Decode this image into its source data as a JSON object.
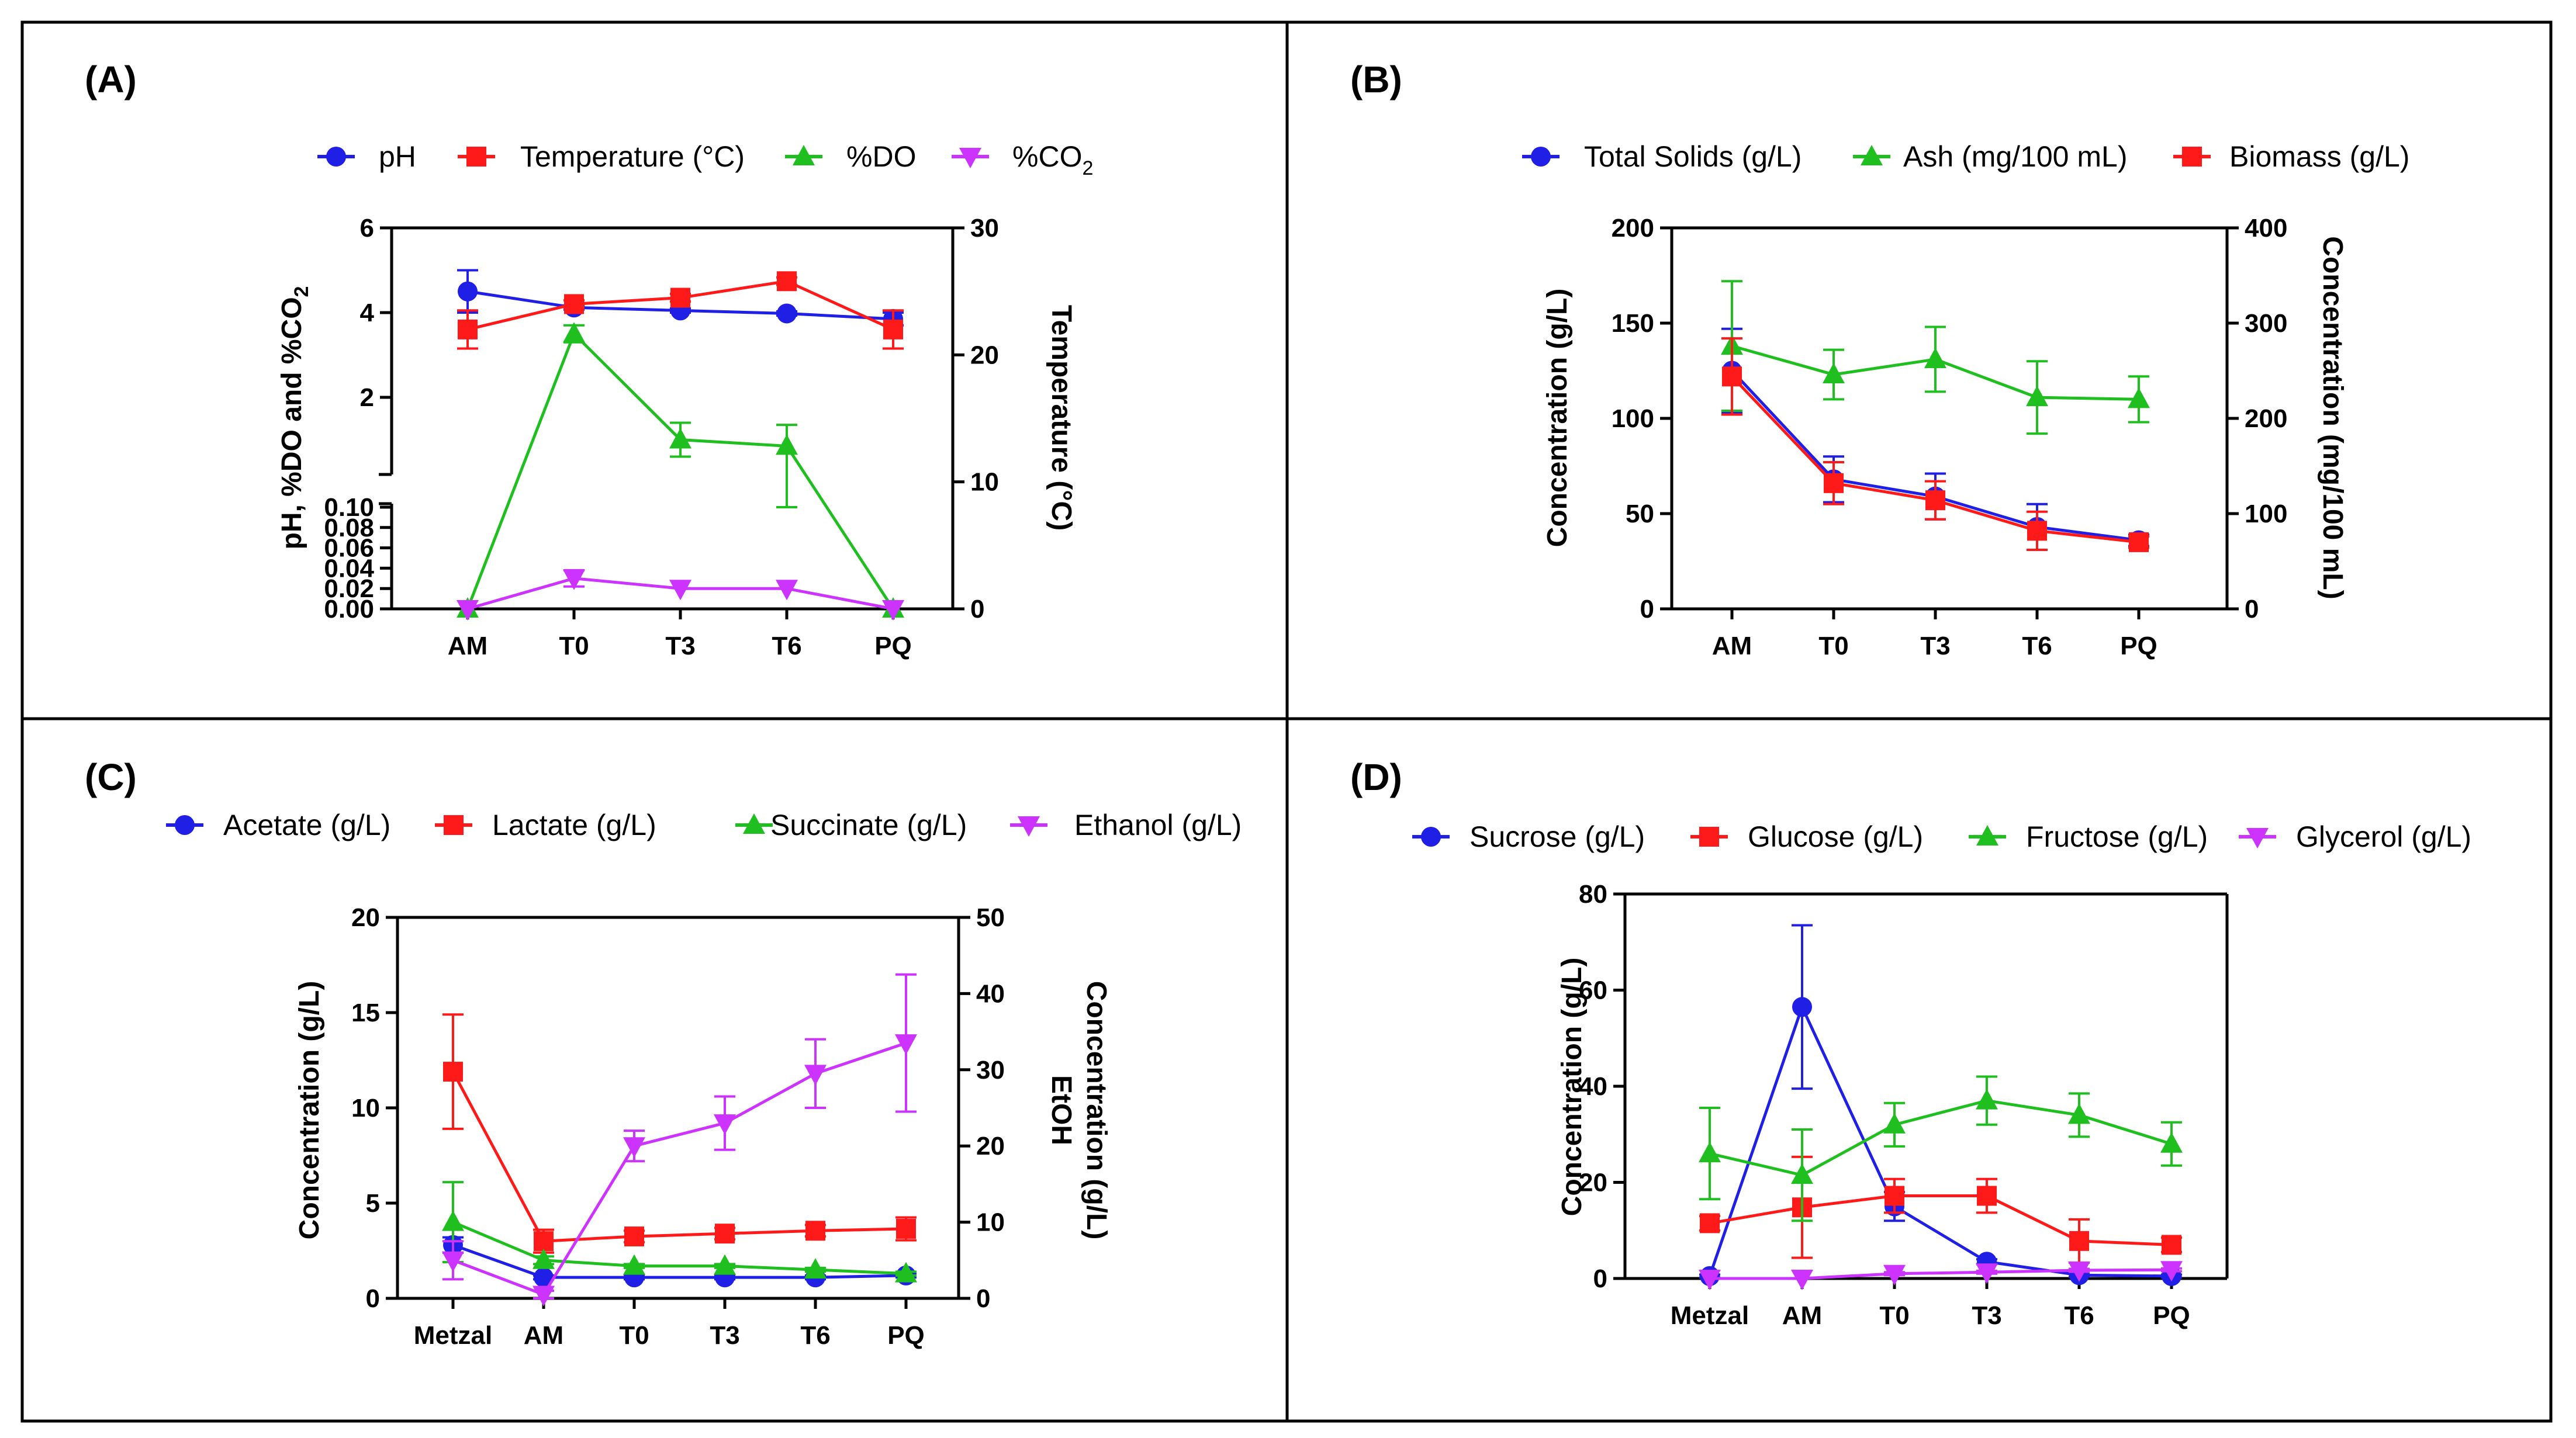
{
  "figure": {
    "panels": [
      "A",
      "B",
      "C",
      "D"
    ]
  },
  "chart_data": [
    {
      "panel": "(A)",
      "type": "line",
      "categories": [
        "AM",
        "T0",
        "T3",
        "T6",
        "PQ"
      ],
      "ylabel_left": "pH, %DO and %CO",
      "ylabel_left_sub": "2",
      "ylabel_right": "Temperature (°C)",
      "left_axis_break": true,
      "left_upper_ylim": [
        0,
        6
      ],
      "left_upper_ticks": [
        "2",
        "4",
        "6"
      ],
      "left_lower_ylim": [
        0,
        0.1
      ],
      "left_lower_ticks": [
        "0.00",
        "0.02",
        "0.04",
        "0.06",
        "0.08",
        "0.10"
      ],
      "right_ylim": [
        0,
        30
      ],
      "right_ticks": [
        "0",
        "10",
        "20",
        "30"
      ],
      "series": [
        {
          "name": "pH",
          "axis": "left",
          "color": "#1f1fe6",
          "marker": "circle",
          "values": [
            4.5,
            4.12,
            4.05,
            3.98,
            3.85
          ],
          "errors": [
            0.5,
            0.05,
            0.05,
            0.05,
            0.15
          ]
        },
        {
          "name": "Temperature (°C)",
          "axis": "right",
          "color": "#ff1a1a",
          "marker": "square",
          "values": [
            22,
            24,
            24.5,
            25.8,
            22
          ],
          "errors": [
            1.5,
            0.3,
            0.3,
            0.3,
            1.5
          ]
        },
        {
          "name": "%DO",
          "axis": "left",
          "color": "#1fbf1f",
          "marker": "triangle-up",
          "values": [
            0,
            3.5,
            1.0,
            0.85,
            0
          ],
          "errors": [
            0,
            0.2,
            0.4,
            0.5,
            0
          ]
        },
        {
          "name": "%CO",
          "name_sub": "2",
          "axis": "left",
          "color": "#cc33ff",
          "marker": "triangle-down",
          "values": [
            0,
            0.03,
            0.02,
            0.02,
            0
          ],
          "errors": [
            0,
            0.008,
            0,
            0,
            0
          ]
        }
      ]
    },
    {
      "panel": "(B)",
      "type": "line",
      "categories": [
        "AM",
        "T0",
        "T3",
        "T6",
        "PQ"
      ],
      "ylabel_left": "Concentration (g/L)",
      "ylabel_right": "Concentration (mg/100 mL)",
      "left_ylim": [
        0,
        200
      ],
      "left_ticks": [
        "0",
        "50",
        "100",
        "150",
        "200"
      ],
      "right_ylim": [
        0,
        400
      ],
      "right_ticks": [
        "0",
        "100",
        "200",
        "300",
        "400"
      ],
      "series": [
        {
          "name": "Total Solids (g/L)",
          "axis": "left",
          "color": "#1f1fe6",
          "marker": "circle",
          "values": [
            125,
            68,
            59,
            43,
            36
          ],
          "errors": [
            22,
            12,
            12,
            12,
            3
          ]
        },
        {
          "name": "Ash (mg/100 mL)",
          "axis": "right",
          "color": "#1fbf1f",
          "marker": "triangle-up",
          "values": [
            276,
            246,
            262,
            222,
            220
          ],
          "errors": [
            68,
            26,
            34,
            38,
            24
          ]
        },
        {
          "name": "Biomass (g/L)",
          "axis": "left",
          "color": "#ff1a1a",
          "marker": "square",
          "values": [
            122,
            66,
            57,
            41,
            35
          ],
          "errors": [
            20,
            11,
            10,
            10,
            3
          ]
        }
      ]
    },
    {
      "panel": "(C)",
      "type": "line",
      "categories": [
        "Metzal",
        "AM",
        "T0",
        "T3",
        "T6",
        "PQ"
      ],
      "ylabel_left": "Concentration (g/L)",
      "ylabel_right": "Concentration (g/L)",
      "ylabel_right_2": "EtOH",
      "left_ylim": [
        0,
        20
      ],
      "left_ticks": [
        "0",
        "5",
        "10",
        "15",
        "20"
      ],
      "right_ylim": [
        0,
        50
      ],
      "right_ticks": [
        "0",
        "10",
        "20",
        "30",
        "40",
        "50"
      ],
      "series": [
        {
          "name": "Acetate (g/L)",
          "axis": "left",
          "color": "#1f1fe6",
          "marker": "circle",
          "values": [
            2.8,
            1.1,
            1.1,
            1.1,
            1.1,
            1.2
          ],
          "errors": [
            0.4,
            0.1,
            0.1,
            0.1,
            0.1,
            0.1
          ]
        },
        {
          "name": "Lactate (g/L)",
          "axis": "left",
          "color": "#ff1a1a",
          "marker": "square",
          "values": [
            11.9,
            3.0,
            3.25,
            3.4,
            3.55,
            3.65
          ],
          "errors": [
            3.0,
            0.6,
            0.3,
            0.3,
            0.3,
            0.6
          ]
        },
        {
          "name": "Succinate (g/L)",
          "axis": "left",
          "color": "#1fbf1f",
          "marker": "triangle-up",
          "values": [
            4.0,
            2.0,
            1.7,
            1.7,
            1.5,
            1.3
          ],
          "errors": [
            2.1,
            0.2,
            0.1,
            0.1,
            0.1,
            0.1
          ]
        },
        {
          "name": "Ethanol (g/L)",
          "axis": "right",
          "color": "#cc33ff",
          "marker": "triangle-down",
          "values": [
            5,
            0.5,
            20,
            23,
            29.5,
            33.5
          ],
          "errors": [
            2.5,
            0.5,
            2,
            3.5,
            4.5,
            9
          ]
        }
      ]
    },
    {
      "panel": "(D)",
      "type": "line",
      "categories": [
        "Metzal",
        "AM",
        "T0",
        "T3",
        "T6",
        "PQ"
      ],
      "ylabel_left": "Concentration (g/L)",
      "left_ylim": [
        0,
        80
      ],
      "left_ticks": [
        "0",
        "20",
        "40",
        "60",
        "80"
      ],
      "series": [
        {
          "name": "Sucrose (g/L)",
          "axis": "left",
          "color": "#1f1fe6",
          "marker": "circle",
          "values": [
            0.5,
            56.5,
            15,
            3.5,
            0.7,
            0.5
          ],
          "errors": [
            0.3,
            17,
            3,
            0.5,
            0.3,
            0.3
          ]
        },
        {
          "name": "Glucose (g/L)",
          "axis": "left",
          "color": "#ff1a1a",
          "marker": "square",
          "values": [
            11.5,
            14.8,
            17.2,
            17.2,
            7.8,
            7.0
          ],
          "errors": [
            1.5,
            10.5,
            3.5,
            3.5,
            4.5,
            1.5
          ]
        },
        {
          "name": "Fructose (g/L)",
          "axis": "left",
          "color": "#1fbf1f",
          "marker": "triangle-up",
          "values": [
            26,
            21.5,
            32,
            37,
            34,
            28
          ],
          "errors": [
            9.5,
            9.5,
            4.5,
            5,
            4.5,
            4.5
          ]
        },
        {
          "name": "Glycerol (g/L)",
          "axis": "left",
          "color": "#cc33ff",
          "marker": "triangle-down",
          "values": [
            0,
            0,
            1.0,
            1.3,
            1.7,
            1.8
          ],
          "errors": [
            0,
            0,
            0.3,
            0.3,
            0.3,
            0.3
          ]
        }
      ]
    }
  ]
}
